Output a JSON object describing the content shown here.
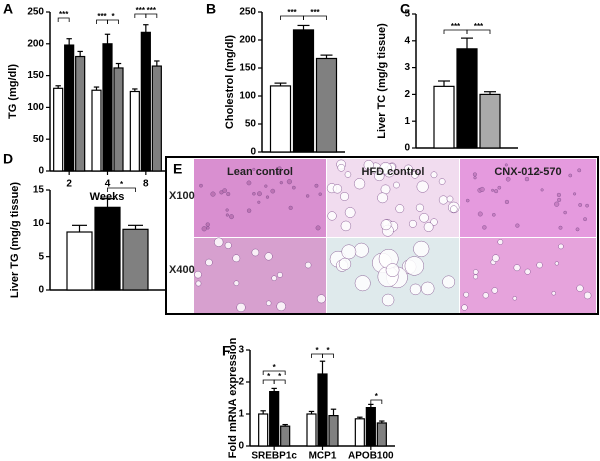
{
  "chart_data": [
    {
      "type": "bar",
      "panel": "A",
      "ylabel": "TG (mg/dl)",
      "xlabel": "Weeks",
      "categories": [
        "2",
        "4",
        "8"
      ],
      "series": [
        {
          "color": "#ffffff",
          "values": [
            130,
            127,
            125
          ],
          "errors": [
            4,
            5,
            4
          ]
        },
        {
          "color": "#000000",
          "values": [
            198,
            200,
            218
          ],
          "errors": [
            10,
            15,
            12
          ]
        },
        {
          "color": "#808080",
          "values": [
            180,
            162,
            165
          ],
          "errors": [
            8,
            7,
            8
          ]
        }
      ],
      "ylim": [
        0,
        250
      ],
      "yticks": [
        0,
        50,
        100,
        150,
        200,
        250
      ],
      "annotations": [
        "***",
        "***",
        "*",
        "***",
        "***"
      ]
    },
    {
      "type": "bar",
      "panel": "B",
      "ylabel": "Cholestrol (mg/dl)",
      "categories": [
        null
      ],
      "series": [
        {
          "color": "#ffffff",
          "values": [
            118
          ],
          "errors": [
            5
          ]
        },
        {
          "color": "#000000",
          "values": [
            218
          ],
          "errors": [
            8
          ]
        },
        {
          "color": "#808080",
          "values": [
            167
          ],
          "errors": [
            6
          ]
        }
      ],
      "ylim": [
        0,
        250
      ],
      "yticks": [
        0,
        50,
        100,
        150,
        200,
        250
      ],
      "annotations": [
        "***",
        "***"
      ]
    },
    {
      "type": "bar",
      "panel": "C",
      "ylabel": "Liver TC (mg/g tissue)",
      "categories": [
        null
      ],
      "series": [
        {
          "color": "#ffffff",
          "values": [
            2.3
          ],
          "errors": [
            0.2
          ]
        },
        {
          "color": "#000000",
          "values": [
            3.7
          ],
          "errors": [
            0.4
          ]
        },
        {
          "color": "#aaaaaa",
          "values": [
            2.0
          ],
          "errors": [
            0.1
          ]
        }
      ],
      "ylim": [
        0,
        5
      ],
      "yticks": [
        0,
        1,
        2,
        3,
        4,
        5
      ],
      "annotations": [
        "***",
        "***"
      ]
    },
    {
      "type": "bar",
      "panel": "D",
      "ylabel": "Liver TG (mg/g tissue)",
      "categories": [
        null
      ],
      "series": [
        {
          "color": "#ffffff",
          "values": [
            8.7
          ],
          "errors": [
            1.0
          ]
        },
        {
          "color": "#000000",
          "values": [
            12.4
          ],
          "errors": [
            1.3
          ]
        },
        {
          "color": "#808080",
          "values": [
            9.1
          ],
          "errors": [
            0.6
          ]
        }
      ],
      "ylim": [
        0,
        15
      ],
      "yticks": [
        0,
        5,
        10,
        15
      ],
      "annotations": [
        "*"
      ]
    },
    {
      "type": "bar",
      "panel": "F",
      "ylabel": "Fold  mRNA expression",
      "categories": [
        "SREBP1c",
        "MCP1",
        "APOB100"
      ],
      "series": [
        {
          "color": "#ffffff",
          "values": [
            1.0,
            1.0,
            0.85
          ],
          "errors": [
            0.1,
            0.08,
            0.05
          ]
        },
        {
          "color": "#000000",
          "values": [
            1.7,
            2.25,
            1.2
          ],
          "errors": [
            0.1,
            0.4,
            0.1
          ]
        },
        {
          "color": "#808080",
          "values": [
            0.62,
            0.95,
            0.72
          ],
          "errors": [
            0.05,
            0.2,
            0.06
          ]
        }
      ],
      "ylim": [
        0,
        3
      ],
      "yticks": [
        0,
        1,
        2,
        3
      ],
      "annotations": [
        "*",
        "*",
        "*",
        "*",
        "*",
        "*"
      ]
    }
  ],
  "histology": {
    "panel": "E",
    "columns": [
      "Lean control",
      "HFD control",
      "CNX-012-570"
    ],
    "rows": [
      "X100",
      "X400"
    ]
  }
}
